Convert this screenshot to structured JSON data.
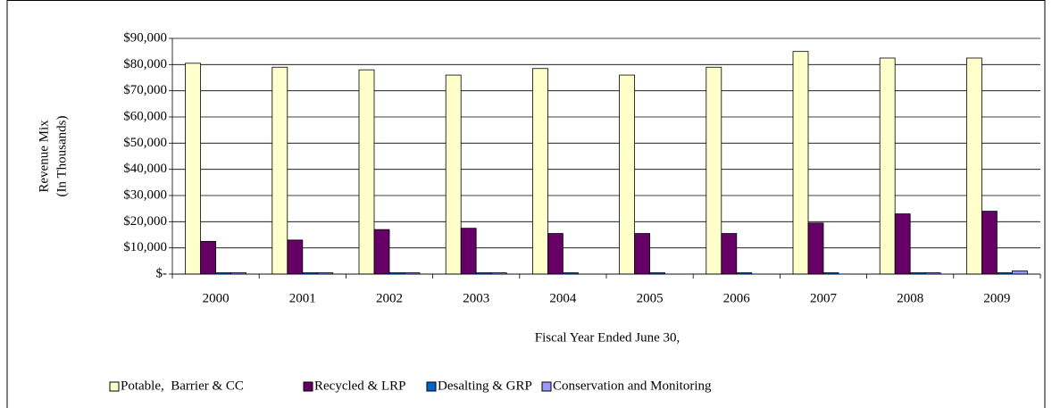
{
  "chart_data": {
    "type": "bar",
    "ylabel": [
      "Revenue Mix",
      "(In Thousands)"
    ],
    "xlabel": "Fiscal Year Ended June 30,",
    "categories": [
      "2000",
      "2001",
      "2002",
      "2003",
      "2004",
      "2005",
      "2006",
      "2007",
      "2008",
      "2009"
    ],
    "series": [
      {
        "name": "Potable,  Barrier & CC",
        "color": "#ffffcc",
        "values": [
          80500,
          79000,
          78000,
          76000,
          78500,
          76000,
          79000,
          85000,
          82500,
          82500
        ]
      },
      {
        "name": "Recycled & LRP",
        "color": "#660066",
        "values": [
          12500,
          13000,
          17000,
          17500,
          15500,
          15500,
          15500,
          19500,
          23000,
          24000
        ]
      },
      {
        "name": "Desalting & GRP",
        "color": "#0066cc",
        "values": [
          500,
          500,
          500,
          500,
          500,
          500,
          500,
          500,
          500,
          500
        ]
      },
      {
        "name": "Conservation and Monitoring",
        "color": "#9999ff",
        "values": [
          500,
          500,
          500,
          500,
          0,
          0,
          0,
          0,
          500,
          1200
        ]
      }
    ],
    "ylim": [
      0,
      90000
    ],
    "yticks": [
      {
        "value": 0,
        "label": "$-"
      },
      {
        "value": 10000,
        "label": "$10,000"
      },
      {
        "value": 20000,
        "label": "$20,000"
      },
      {
        "value": 30000,
        "label": "$30,000"
      },
      {
        "value": 40000,
        "label": "$40,000"
      },
      {
        "value": 50000,
        "label": "$50,000"
      },
      {
        "value": 60000,
        "label": "$60,000"
      },
      {
        "value": 70000,
        "label": "$70,000"
      },
      {
        "value": 80000,
        "label": "$80,000"
      },
      {
        "value": 90000,
        "label": "$90,000"
      }
    ],
    "grid": true,
    "legend": "bottom"
  }
}
